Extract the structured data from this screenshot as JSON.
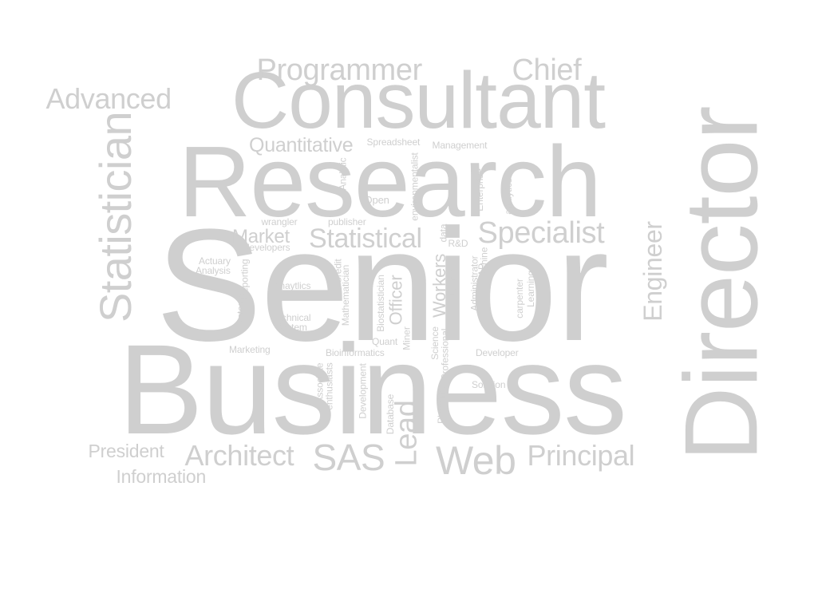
{
  "colors": {
    "background": "#ffffff",
    "text": "#cfcfcf"
  },
  "words": [
    {
      "id": "senior",
      "text": "Senior"
    },
    {
      "id": "business",
      "text": "Business"
    },
    {
      "id": "research",
      "text": "Research"
    },
    {
      "id": "consultant",
      "text": "Consultant"
    },
    {
      "id": "director",
      "text": "Director"
    },
    {
      "id": "statistician",
      "text": "Statistician"
    },
    {
      "id": "programmer",
      "text": "Programmer"
    },
    {
      "id": "chief",
      "text": "Chief"
    },
    {
      "id": "advanced",
      "text": "Advanced"
    },
    {
      "id": "quantitative",
      "text": "Quantitative"
    },
    {
      "id": "spreadsheet",
      "text": "Spreadsheet"
    },
    {
      "id": "management",
      "text": "Management"
    },
    {
      "id": "statistical",
      "text": "Statistical"
    },
    {
      "id": "specialist",
      "text": "Specialist"
    },
    {
      "id": "market",
      "text": "Market"
    },
    {
      "id": "engineer",
      "text": "Engineer"
    },
    {
      "id": "architect",
      "text": "Architect"
    },
    {
      "id": "sas",
      "text": "SAS"
    },
    {
      "id": "lead",
      "text": "Lead"
    },
    {
      "id": "web",
      "text": "Web"
    },
    {
      "id": "principal",
      "text": "Principal"
    },
    {
      "id": "president",
      "text": "President"
    },
    {
      "id": "information",
      "text": "Information"
    },
    {
      "id": "workers",
      "text": "Workers"
    },
    {
      "id": "officer",
      "text": "Officer"
    },
    {
      "id": "analytic",
      "text": "Analytic"
    },
    {
      "id": "environmentalist",
      "text": "environmentalist"
    },
    {
      "id": "enterprise",
      "text": "Enterprise"
    },
    {
      "id": "analytics_lc",
      "text": "analytics"
    },
    {
      "id": "open",
      "text": "Open"
    },
    {
      "id": "wrangler",
      "text": "wrangler"
    },
    {
      "id": "publisher",
      "text": "publisher"
    },
    {
      "id": "developers",
      "text": "developers"
    },
    {
      "id": "data",
      "text": "data"
    },
    {
      "id": "rnd",
      "text": "R&D"
    },
    {
      "id": "actuary",
      "text": "Actuary"
    },
    {
      "id": "analysis",
      "text": "Analysis"
    },
    {
      "id": "reporting",
      "text": "Reporting"
    },
    {
      "id": "systems",
      "text": "Systems"
    },
    {
      "id": "credit",
      "text": "Credit"
    },
    {
      "id": "mathematician",
      "text": "Mathematician"
    },
    {
      "id": "anaytlics",
      "text": "Anaytlics"
    },
    {
      "id": "technical",
      "text": "Technical"
    },
    {
      "id": "system",
      "text": "System"
    },
    {
      "id": "marketing",
      "text": "Marketing"
    },
    {
      "id": "bioinformatics",
      "text": "Bioinformatics"
    },
    {
      "id": "biostatistician",
      "text": "Biostatistician"
    },
    {
      "id": "miner",
      "text": "Miner"
    },
    {
      "id": "quant",
      "text": "Quant"
    },
    {
      "id": "science",
      "text": "Science"
    },
    {
      "id": "professional",
      "text": "Professional"
    },
    {
      "id": "janitor",
      "text": "Janitor"
    },
    {
      "id": "administrator",
      "text": "Administrator"
    },
    {
      "id": "sap",
      "text": "SAP"
    },
    {
      "id": "machine",
      "text": "Machine"
    },
    {
      "id": "carpenter",
      "text": "carpenter"
    },
    {
      "id": "learning",
      "text": "Learning"
    },
    {
      "id": "developer",
      "text": "Developer"
    },
    {
      "id": "associate",
      "text": "Associate"
    },
    {
      "id": "enthusiasts",
      "text": "enthusiasts"
    },
    {
      "id": "development",
      "text": "Development"
    },
    {
      "id": "database",
      "text": "Database"
    },
    {
      "id": "planning",
      "text": "Planning"
    },
    {
      "id": "solution",
      "text": "Solution"
    }
  ]
}
